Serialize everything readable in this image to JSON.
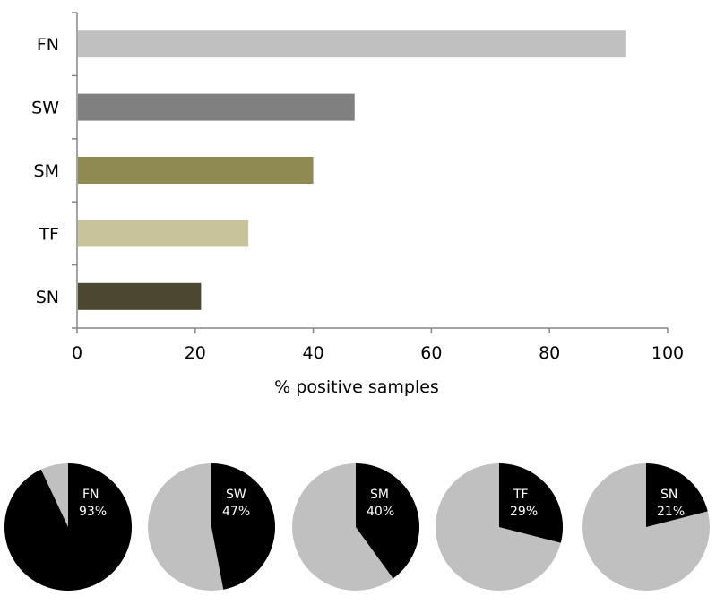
{
  "chart_data": [
    {
      "type": "bar",
      "orientation": "horizontal",
      "categories": [
        "FN",
        "SW",
        "SM",
        "TF",
        "SN"
      ],
      "values": [
        93,
        47,
        40,
        29,
        21
      ],
      "bar_colors": [
        "#c0c0c0",
        "#808080",
        "#8f8952",
        "#c8c39a",
        "#4b4730"
      ],
      "xlabel": "% positive samples",
      "ylabel": "",
      "xlim": [
        0,
        100
      ],
      "xticks": [
        0,
        20,
        40,
        60,
        80,
        100
      ],
      "grid": false
    },
    {
      "type": "pie",
      "charts": [
        {
          "label": "FN",
          "percent_label": "93%",
          "value": 93
        },
        {
          "label": "SW",
          "percent_label": "47%",
          "value": 47
        },
        {
          "label": "SM",
          "percent_label": "40%",
          "value": 40
        },
        {
          "label": "TF",
          "percent_label": "29%",
          "value": 29
        },
        {
          "label": "SN",
          "percent_label": "21%",
          "value": 21
        }
      ],
      "positive_color": "#000000",
      "negative_color": "#c0c0c0",
      "label_color": "#ffffff"
    }
  ]
}
